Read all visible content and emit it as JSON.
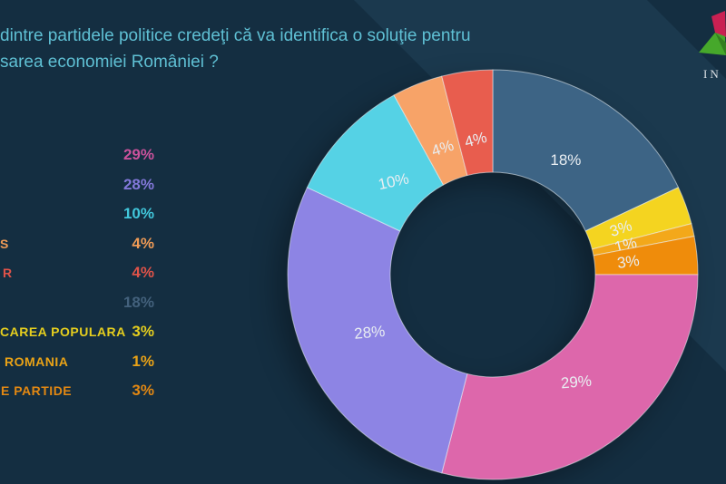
{
  "title": {
    "line1": "dintre partidele politice credeţi că va identifica o soluţie pentru",
    "line2": "sarea economiei României ?"
  },
  "logo": {
    "icon": "pyramid-logo-icon",
    "text_fragment": "IN"
  },
  "colors": {
    "background": "#142e41",
    "background_band": "#1b394e",
    "title_text": "#5fc0d4",
    "slice_label_text": "#e9eef2"
  },
  "legend": {
    "rows": [
      {
        "label": "",
        "value": "29%",
        "color": "#cb529c"
      },
      {
        "label": "",
        "value": "28%",
        "color": "#8378da"
      },
      {
        "label": "",
        "value": "10%",
        "color": "#41c7db"
      },
      {
        "label": "S",
        "value": "4%",
        "color": "#f09b56"
      },
      {
        "label": "R",
        "value": "4%",
        "color": "#e05349"
      },
      {
        "label": "",
        "value": "18%",
        "color": "#43617c"
      },
      {
        "label": "CAREA POPULARA",
        "value": "3%",
        "color": "#e5ce1e"
      },
      {
        "label": "ROMANIA",
        "value": "1%",
        "color": "#eaa316"
      },
      {
        "label": "E PARTIDE",
        "value": "3%",
        "color": "#e38812"
      }
    ]
  },
  "chart_data": {
    "type": "pie",
    "subtype": "donut",
    "title": "dintre partidele politice credeţi că va identifica o soluţie pentru sarea economiei României ?",
    "legend_position": "left",
    "order": "clockwise-from-top",
    "slices": [
      {
        "label": "18%",
        "value": 18,
        "color": "#3d6485"
      },
      {
        "label": "3%",
        "value": 3,
        "color": "#f4d420"
      },
      {
        "label": "1%",
        "value": 1,
        "color": "#f3a81a"
      },
      {
        "label": "3%",
        "value": 3,
        "color": "#ef8c0b"
      },
      {
        "label": "29%",
        "value": 29,
        "color": "#dd67ab"
      },
      {
        "label": "28%",
        "value": 28,
        "color": "#8d84e4"
      },
      {
        "label": "10%",
        "value": 10,
        "color": "#55d2e5"
      },
      {
        "label": "4%",
        "value": 4,
        "color": "#f7a368"
      },
      {
        "label": "4%",
        "value": 4,
        "color": "#e85d4e"
      }
    ]
  }
}
